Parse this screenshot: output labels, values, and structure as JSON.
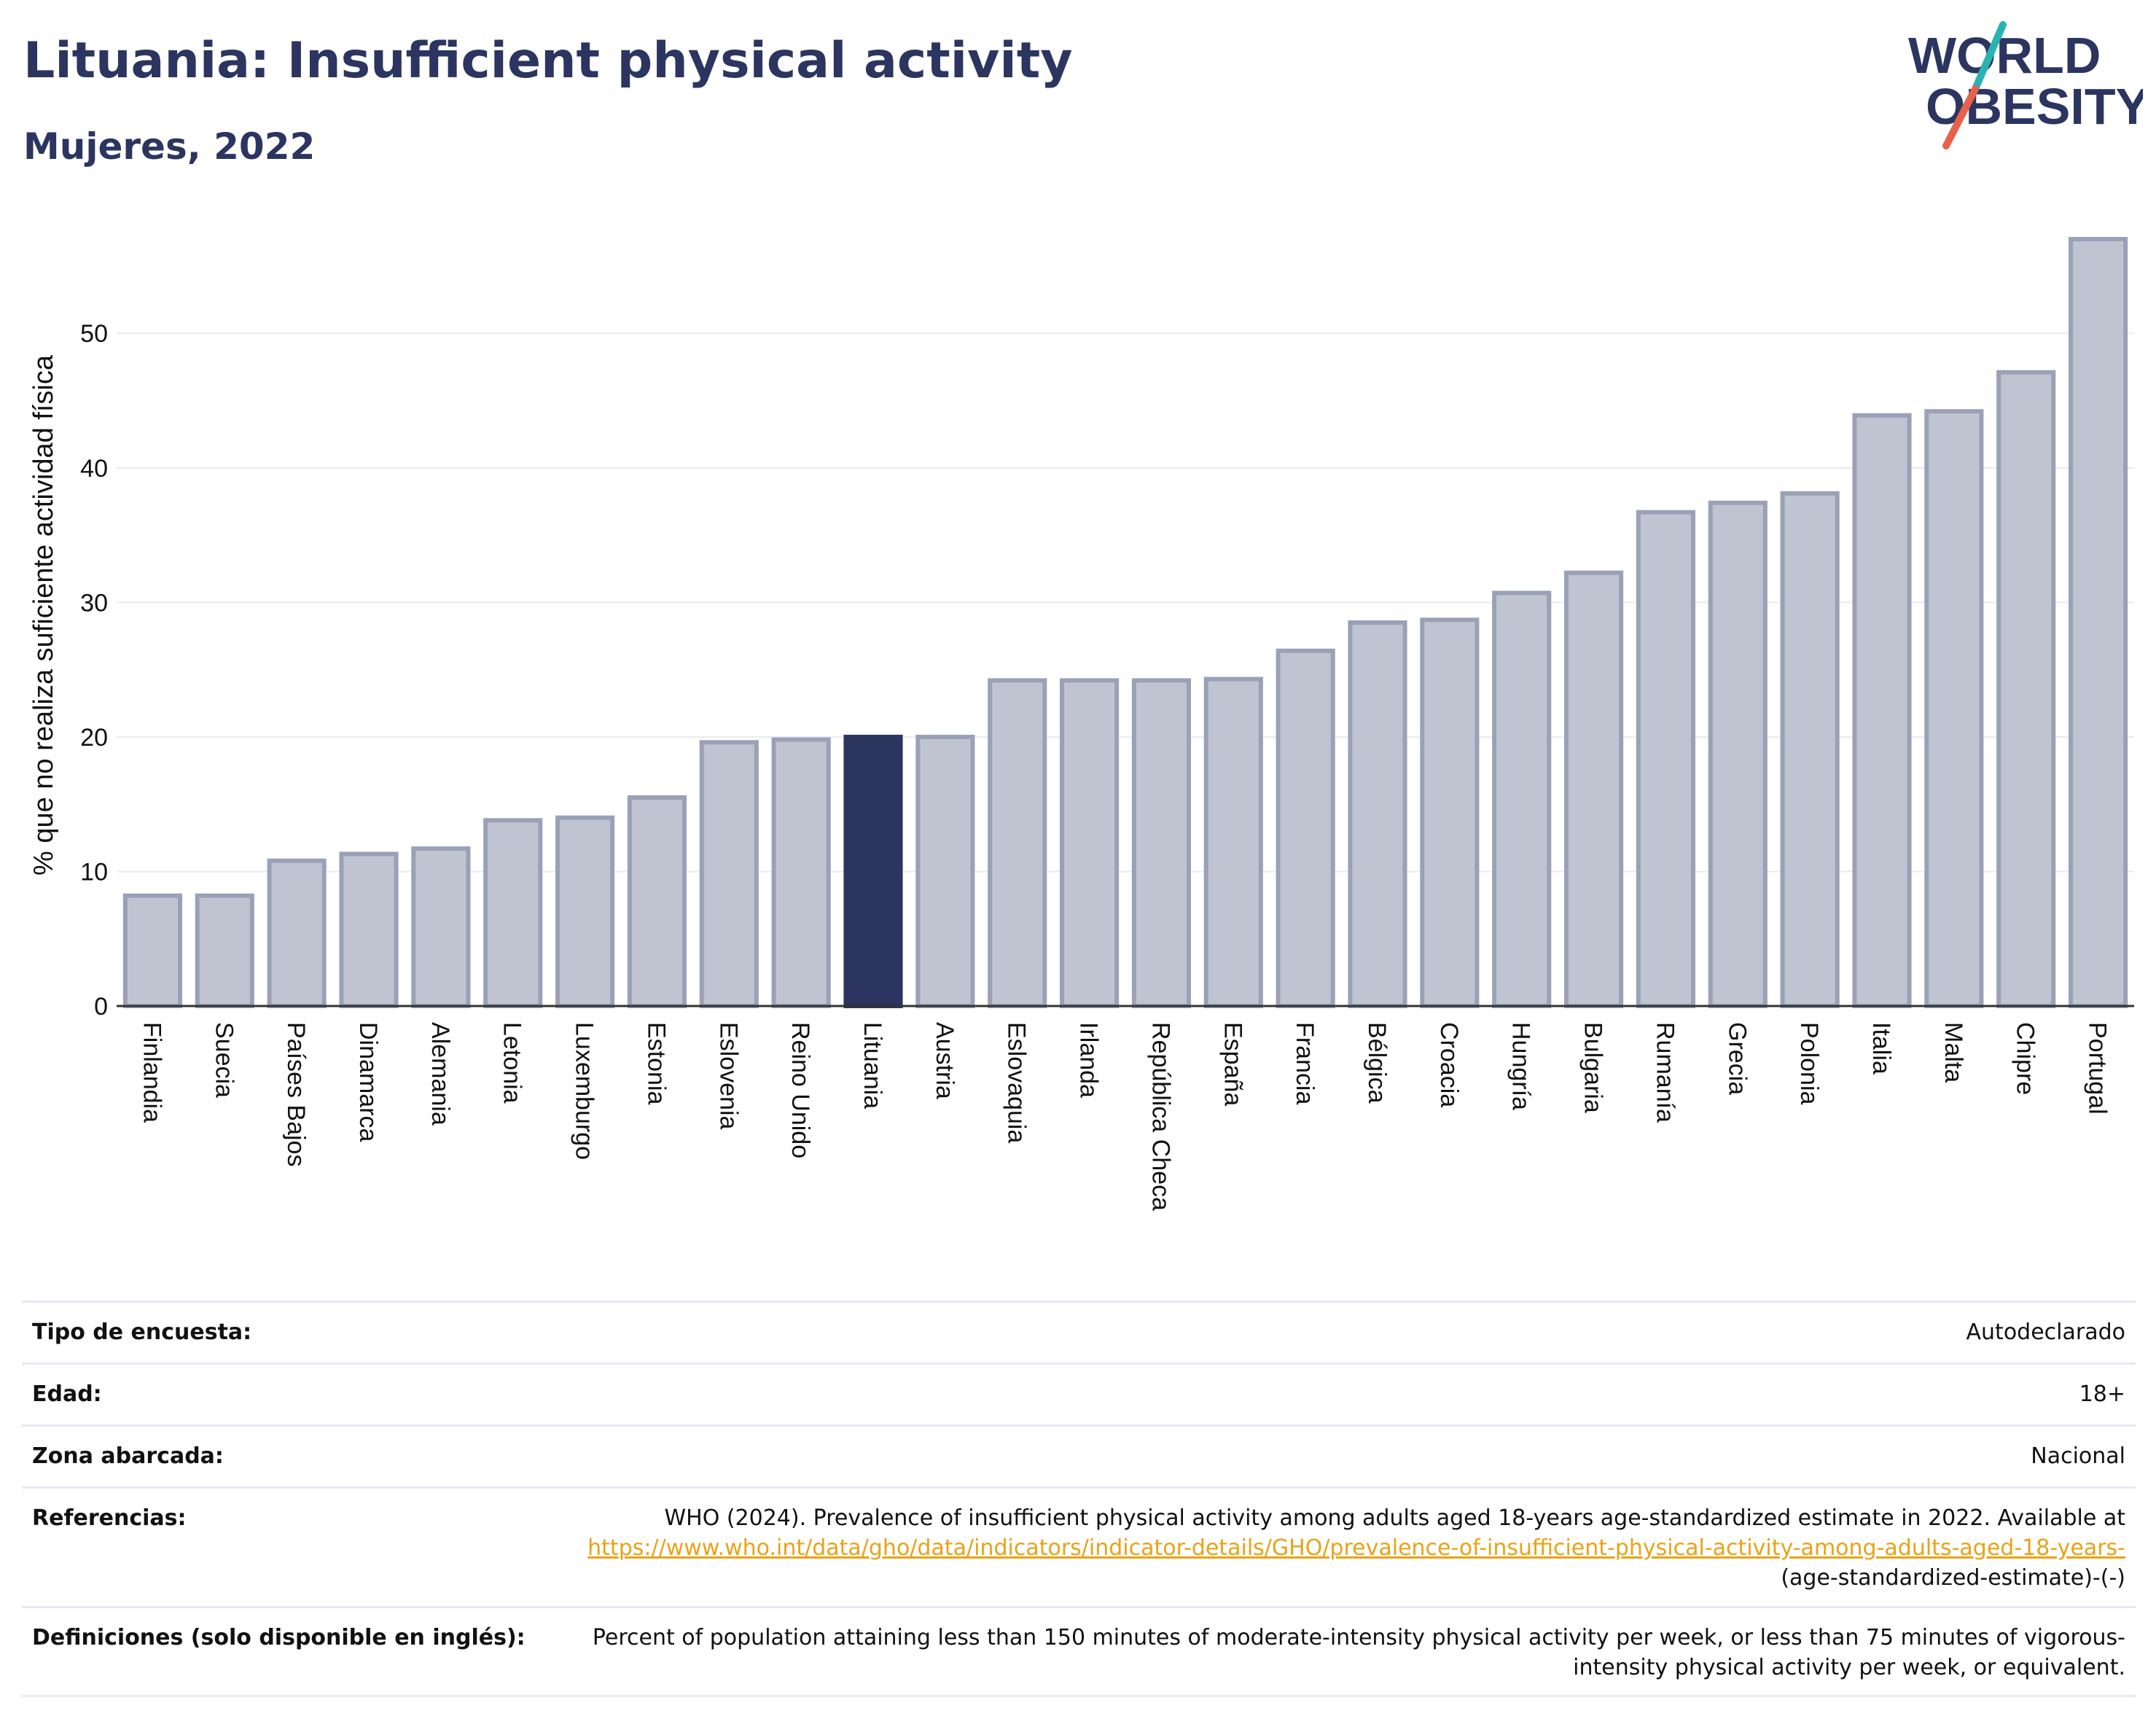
{
  "header": {
    "title": "Lituania: Insufficient physical activity",
    "subtitle": "Mujeres, 2022"
  },
  "logo": {
    "line1": "WORLD",
    "line2": "OBESITY",
    "colors": {
      "text": "#2b3560",
      "slash_teal": "#2bb3b1",
      "slash_coral": "#e8604c"
    }
  },
  "chart_data": {
    "type": "bar",
    "title": "",
    "xlabel": "",
    "ylabel": "% que no realiza suficiente actividad física",
    "ylim": [
      0,
      57
    ],
    "yticks": [
      0,
      10,
      20,
      30,
      40,
      50
    ],
    "grid": true,
    "legend": "none",
    "highlight": "Lituania",
    "colors": {
      "bar": "#c0c4d1",
      "bar_edge": "#9aa1b7",
      "highlight": "#2b3560"
    },
    "categories": [
      "Finlandia",
      "Suecia",
      "Países Bajos",
      "Dinamarca",
      "Alemania",
      "Letonia",
      "Luxemburgo",
      "Estonia",
      "Eslovenia",
      "Reino Unido",
      "Lituania",
      "Austria",
      "Eslovaquia",
      "Irlanda",
      "República Checa",
      "España",
      "Francia",
      "Bélgica",
      "Croacia",
      "Hungría",
      "Bulgaria",
      "Rumanía",
      "Grecia",
      "Polonia",
      "Italia",
      "Malta",
      "Chipre",
      "Portugal"
    ],
    "values": [
      8.2,
      8.2,
      10.8,
      11.3,
      11.7,
      13.8,
      14.0,
      15.5,
      19.6,
      19.8,
      20.0,
      20.0,
      24.2,
      24.2,
      24.2,
      24.3,
      26.4,
      28.5,
      28.7,
      30.7,
      32.2,
      36.7,
      37.4,
      38.1,
      43.9,
      44.2,
      47.1,
      57.0
    ]
  },
  "metadata": {
    "survey_type": {
      "label": "Tipo de encuesta:",
      "value": "Autodeclarado"
    },
    "age": {
      "label": "Edad:",
      "value": "18+"
    },
    "area": {
      "label": "Zona abarcada:",
      "value": "Nacional"
    },
    "references": {
      "label": "Referencias:",
      "text": "WHO (2024). Prevalence of insufficient physical activity among adults aged 18-years age-standardized estimate in 2022. Available at",
      "link": "https://www.who.int/data/gho/data/indicators/indicator-details/GHO/prevalence-of-insufficient-physical-activity-among-adults-aged-18-years-",
      "tail": "(age-standardized-estimate)-(-)"
    },
    "definitions": {
      "label": "Definiciones (solo disponible en inglés):",
      "value": "Percent of population attaining less than 150 minutes of moderate-intensity physical activity per week, or less than 75 minutes of vigorous-intensity physical activity per week, or equivalent."
    }
  }
}
